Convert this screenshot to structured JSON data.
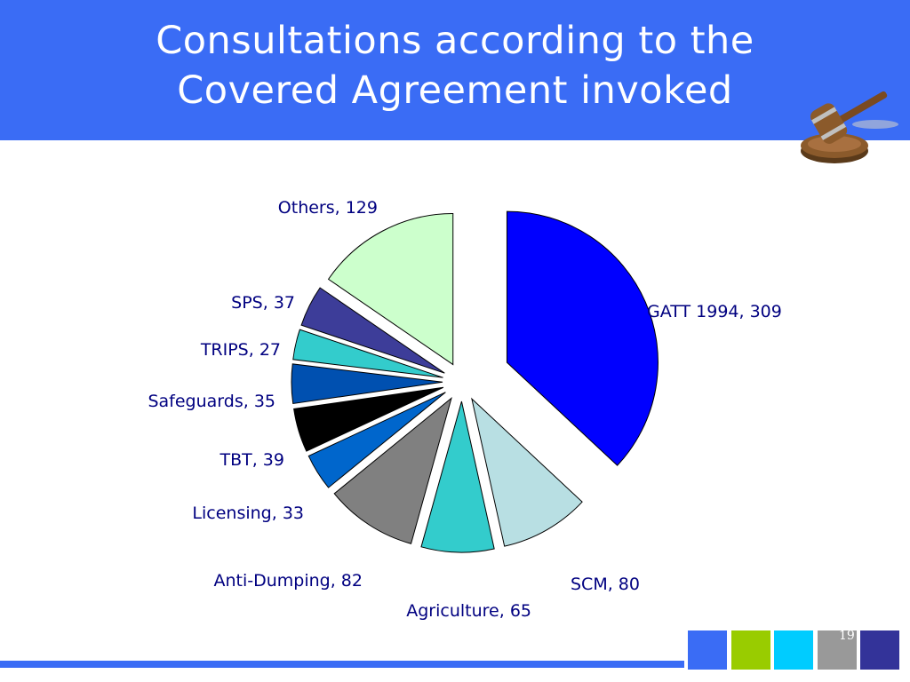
{
  "slide": {
    "title_line1": "Consultations according to the",
    "title_line2": "Covered Agreement invoked",
    "page_number": "19"
  },
  "colors": {
    "header": "#3a6cf5",
    "label": "#000080",
    "footer_squares": [
      "#3a6cf5",
      "#99cc00",
      "#00ccff",
      "#999999",
      "#333399"
    ]
  },
  "chart_data": {
    "type": "pie",
    "exploded": true,
    "slices": [
      {
        "label": "GATT 1994",
        "value": 309,
        "color": "#0000ff",
        "text": "GATT 1994, 309"
      },
      {
        "label": "SCM",
        "value": 80,
        "color": "#b8dfe3",
        "text": "SCM, 80"
      },
      {
        "label": "Agriculture",
        "value": 65,
        "color": "#33cccc",
        "text": "Agriculture, 65"
      },
      {
        "label": "Anti-Dumping",
        "value": 82,
        "color": "#808080",
        "text": "Anti-Dumping, 82"
      },
      {
        "label": "Licensing",
        "value": 33,
        "color": "#0066cc",
        "text": "Licensing, 33"
      },
      {
        "label": "TBT",
        "value": 39,
        "color": "#000000",
        "text": "TBT, 39"
      },
      {
        "label": "Safeguards",
        "value": 35,
        "color": "#0050b0",
        "text": "Safeguards, 35"
      },
      {
        "label": "TRIPS",
        "value": 27,
        "color": "#33cccc",
        "text": "TRIPS, 27"
      },
      {
        "label": "SPS",
        "value": 37,
        "color": "#3d3d99",
        "text": "SPS, 37"
      },
      {
        "label": "Others",
        "value": 129,
        "color": "#ccffcc",
        "text": "Others, 129"
      }
    ]
  }
}
